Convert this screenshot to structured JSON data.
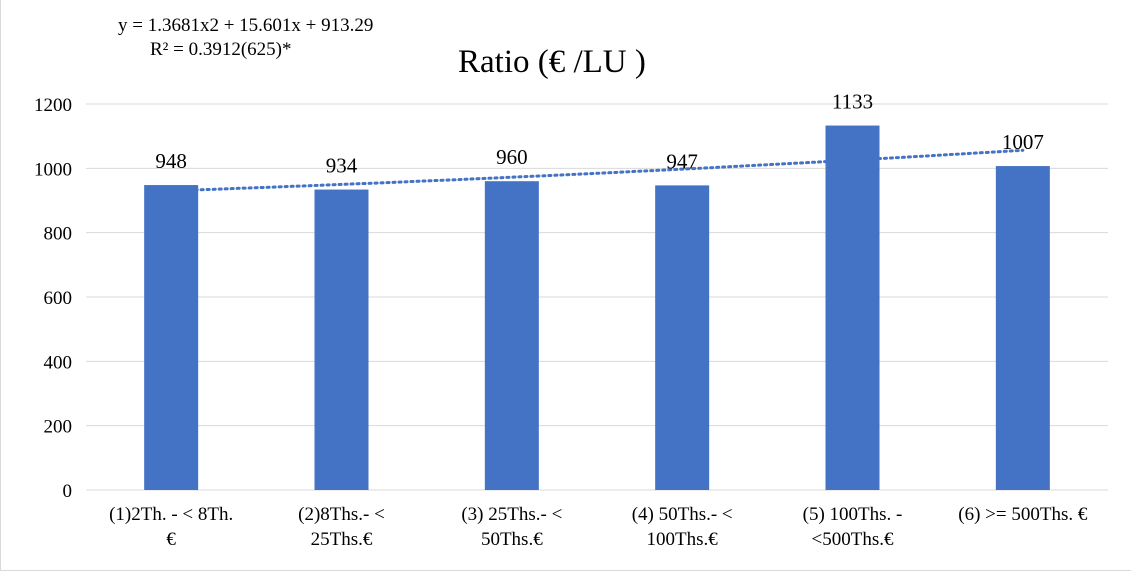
{
  "chart_data": {
    "type": "bar",
    "title": "Ratio (€ /LU )",
    "trendline": {
      "equation": "y = 1.3681x2 + 15.601x + 913.29",
      "r_squared": "R² = 0.3912(625)*",
      "type": "polynomial",
      "order": 2,
      "coefficients": [
        1.3681,
        15.601,
        913.29
      ],
      "style": "dotted",
      "color": "#4472c4"
    },
    "categories": [
      [
        "(1)2Th. - < 8Th.",
        "€"
      ],
      [
        "(2)8Ths.- <",
        "25Ths.€"
      ],
      [
        "(3) 25Ths.- <",
        "50Ths.€"
      ],
      [
        "(4) 50Ths.- <",
        "100Ths.€"
      ],
      [
        "(5) 100Ths. -",
        "<500Ths.€"
      ],
      [
        "(6) >= 500Ths. €"
      ]
    ],
    "values": [
      948,
      934,
      960,
      947,
      1133,
      1007
    ],
    "data_labels": [
      "948",
      "934",
      "960",
      "947",
      "1133",
      "1007"
    ],
    "yticks": [
      "0",
      "200",
      "400",
      "600",
      "800",
      "1000",
      "1200"
    ],
    "ylim": [
      0,
      1200
    ],
    "grid": true,
    "bar_color": "#4472c4",
    "grid_color": "#d9d9d9"
  }
}
